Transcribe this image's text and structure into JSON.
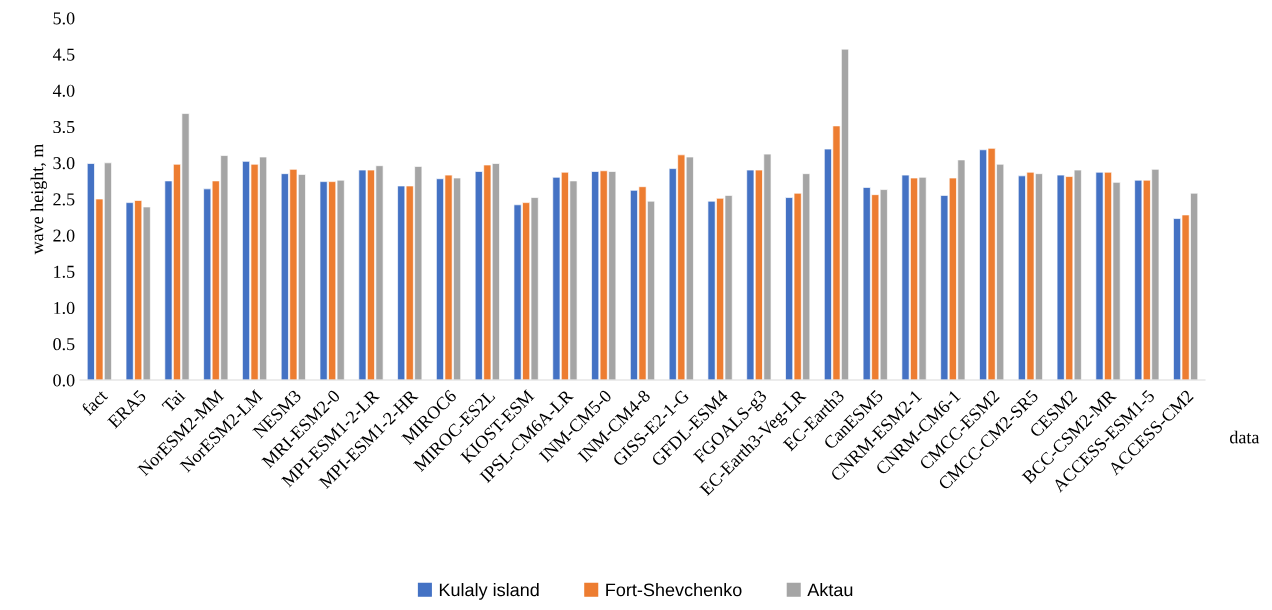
{
  "chart_data": {
    "type": "bar",
    "xlabel": "data",
    "ylabel": "wave height, m",
    "categories": [
      "fact",
      "ERA5",
      "Tai",
      "NorESM2-MM",
      "NorESM2-LM",
      "NESM3",
      "MRI-ESM2-0",
      "MPI-ESM1-2-LR",
      "MPI-ESM1-2-HR",
      "MIROC6",
      "MIROC-ES2L",
      "KIOST-ESM",
      "IPSL-CM6A-LR",
      "INM-CM5-0",
      "INM-CM4-8",
      "GISS-E2-1-G",
      "GFDL-ESM4",
      "FGOALS-g3",
      "EC-Earth3-Veg-LR",
      "EC-Earth3",
      "CanESM5",
      "CNRM-ESM2-1",
      "CNRM-CM6-1",
      "CMCC-ESM2",
      "CMCC-CM2-SR5",
      "CESM2",
      "BCC-CSM2-MR",
      "ACCESS-ESM1-5",
      "ACCESS-CM2"
    ],
    "series": [
      {
        "name": "Kulaly island",
        "color": "#4472c4",
        "values": [
          2.99,
          2.45,
          2.75,
          2.64,
          3.02,
          2.85,
          2.74,
          2.9,
          2.68,
          2.78,
          2.88,
          2.42,
          2.8,
          2.88,
          2.62,
          2.92,
          2.47,
          2.9,
          2.52,
          3.19,
          2.66,
          2.83,
          2.55,
          3.18,
          2.82,
          2.83,
          2.87,
          2.76,
          2.23
        ]
      },
      {
        "name": "Fort-Shevchenko",
        "color": "#ed7d31",
        "values": [
          2.5,
          2.48,
          2.98,
          2.75,
          2.98,
          2.91,
          2.74,
          2.9,
          2.68,
          2.83,
          2.97,
          2.45,
          2.87,
          2.89,
          2.67,
          3.11,
          2.51,
          2.9,
          2.58,
          3.51,
          2.56,
          2.79,
          2.79,
          3.2,
          2.87,
          2.81,
          2.87,
          2.76,
          2.28
        ]
      },
      {
        "name": "Aktau",
        "color": "#a5a5a5",
        "values": [
          3.0,
          2.39,
          3.68,
          3.1,
          3.08,
          2.84,
          2.76,
          2.96,
          2.95,
          2.79,
          2.99,
          2.52,
          2.75,
          2.88,
          2.47,
          3.08,
          2.55,
          3.12,
          2.85,
          4.57,
          2.63,
          2.8,
          3.04,
          2.98,
          2.85,
          2.9,
          2.73,
          2.91,
          2.58
        ]
      }
    ],
    "ylim": [
      0,
      5
    ],
    "yticks": [
      {
        "value": 0,
        "label": "0.0"
      },
      {
        "value": 0.5,
        "label": "0.5"
      },
      {
        "value": 1,
        "label": "1.0"
      },
      {
        "value": 1.5,
        "label": "1.5"
      },
      {
        "value": 2,
        "label": "2.0"
      },
      {
        "value": 2.5,
        "label": "2.5"
      },
      {
        "value": 3,
        "label": "3.0"
      },
      {
        "value": 3.5,
        "label": "3.5"
      },
      {
        "value": 4,
        "label": "4.0"
      },
      {
        "value": 4.5,
        "label": "4.5"
      },
      {
        "value": 5,
        "label": "5.0"
      }
    ],
    "grid": false,
    "legend": "bottom"
  }
}
